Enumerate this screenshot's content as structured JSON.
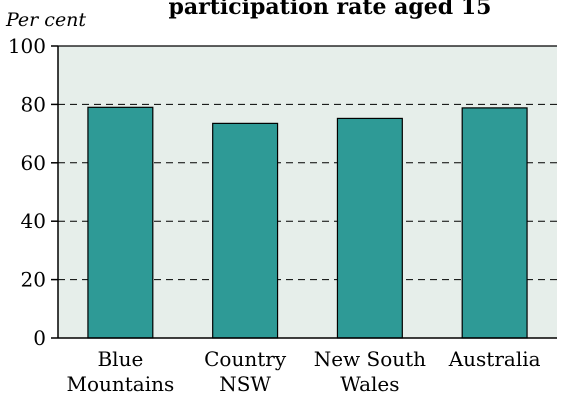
{
  "chart_data": {
    "type": "bar",
    "title": "participation rate aged 15",
    "ylabel": "Per cent",
    "xlabel": "",
    "categories": [
      [
        "Blue",
        "Mountains"
      ],
      [
        "Country",
        "NSW"
      ],
      [
        "New South",
        "Wales"
      ],
      [
        "Australia"
      ]
    ],
    "values": [
      79,
      73.5,
      75.2,
      78.8
    ],
    "ylim": [
      0,
      100
    ],
    "yticks": [
      0,
      20,
      40,
      60,
      80,
      100
    ],
    "grid": true,
    "colors": {
      "bar_fill": "#2e9a96",
      "bar_stroke": "#000000",
      "plot_bg": "#e6eeea",
      "grid": "#000000"
    }
  }
}
